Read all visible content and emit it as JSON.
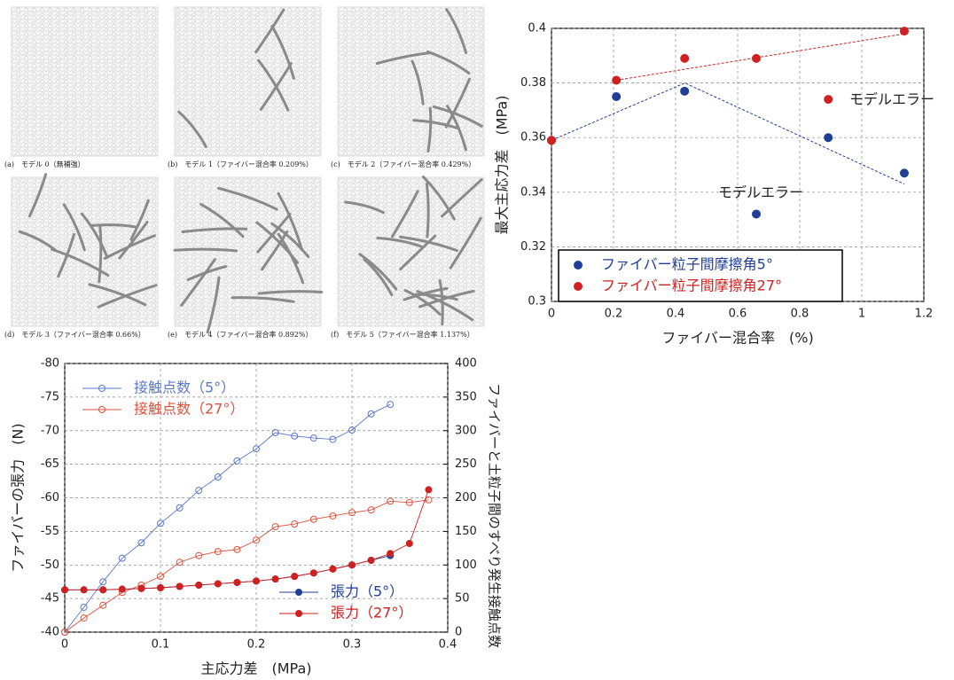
{
  "panels": [
    {
      "caption": "(a)　モデル 0（無補強）"
    },
    {
      "caption": "(b)　モデル 1（ファイバー混合率 0.209%）"
    },
    {
      "caption": "(c)　モデル 2（ファイバー混合率 0.429%）"
    },
    {
      "caption": "(d)　モデル 3（ファイバー混合率 0.66%）"
    },
    {
      "caption": "(e)　モデル 4（ファイバー混合率 0.892%）"
    },
    {
      "caption": "(f)　モデル 5（ファイバー混合率 1.137%）"
    }
  ],
  "chart_data": [
    {
      "type": "scatter",
      "x_label": "ファイバー混合率　(%)",
      "y_label": "最大主応力差　(MPa)",
      "xlim": [
        0,
        1.2
      ],
      "xticks": [
        0,
        0.2,
        0.4,
        0.6,
        0.8,
        1,
        1.2
      ],
      "ylim": [
        0.3,
        0.4
      ],
      "yticks": [
        0.3,
        0.32,
        0.34,
        0.36,
        0.38,
        0.4
      ],
      "grid": true,
      "legend": "lower-left",
      "annotations": [
        "モデルエラー",
        "モデルエラー"
      ],
      "series": [
        {
          "name": "ファイバー粒子間摩擦角5°",
          "color": "#1f3f96",
          "marker": "filled",
          "x": [
            0,
            0.209,
            0.429,
            0.66,
            0.892,
            1.137
          ],
          "values": [
            0.359,
            0.375,
            0.377,
            0.332,
            0.36,
            0.347
          ],
          "trend": {
            "x": [
              0,
              0.43,
              1.137
            ],
            "values": [
              0.359,
              0.38,
              0.343
            ]
          }
        },
        {
          "name": "ファイバー粒子間摩擦角27°",
          "color": "#d02020",
          "marker": "filled",
          "x": [
            0,
            0.209,
            0.429,
            0.66,
            0.892,
            1.137
          ],
          "values": [
            0.359,
            0.381,
            0.389,
            0.389,
            0.374,
            0.399
          ],
          "trend": {
            "x": [
              0.209,
              1.137
            ],
            "values": [
              0.381,
              0.398
            ]
          }
        }
      ]
    },
    {
      "type": "line",
      "x_label": "主応力差　(MPa)",
      "y_label": "ファイバーの張力　(N)",
      "y2_label": "ファイバーと土粒子間のすべり発生接触点数",
      "xlim": [
        0,
        0.4
      ],
      "xticks": [
        0,
        0.1,
        0.2,
        0.3,
        0.4
      ],
      "ylim": [
        -40,
        -80
      ],
      "yticks": [
        -40,
        -45,
        -50,
        -55,
        -60,
        -65,
        -70,
        -75,
        -80
      ],
      "y2lim": [
        0,
        400
      ],
      "y2ticks": [
        0,
        50,
        100,
        150,
        200,
        250,
        300,
        350,
        400
      ],
      "grid": true,
      "series": [
        {
          "name": "接触点数（5°）",
          "color": "#5a78c8",
          "marker": "open",
          "axis": "y2",
          "legend": "upper-left",
          "x": [
            0,
            0.02,
            0.04,
            0.06,
            0.08,
            0.1,
            0.12,
            0.14,
            0.16,
            0.18,
            0.2,
            0.22,
            0.24,
            0.26,
            0.28,
            0.3,
            0.32,
            0.34
          ],
          "values": [
            0,
            37,
            75,
            110,
            133,
            162,
            185,
            211,
            231,
            255,
            273,
            297,
            292,
            289,
            287,
            301,
            325,
            339
          ]
        },
        {
          "name": "接触点数（27°）",
          "color": "#e0503c",
          "marker": "open",
          "axis": "y2",
          "legend": "upper-left",
          "x": [
            0,
            0.02,
            0.04,
            0.06,
            0.08,
            0.1,
            0.12,
            0.14,
            0.16,
            0.18,
            0.2,
            0.22,
            0.24,
            0.26,
            0.28,
            0.3,
            0.32,
            0.34,
            0.36,
            0.38
          ],
          "values": [
            0,
            21,
            40,
            59,
            70,
            83,
            104,
            114,
            120,
            123,
            137,
            157,
            161,
            168,
            173,
            178,
            182,
            195,
            193,
            197
          ]
        },
        {
          "name": "張力（5°）",
          "color": "#1f3f96",
          "marker": "filled",
          "legend": "lower-right",
          "x": [
            0,
            0.02,
            0.04,
            0.06,
            0.08,
            0.1,
            0.12,
            0.14,
            0.16,
            0.18,
            0.2,
            0.22,
            0.24,
            0.26,
            0.28,
            0.3,
            0.32,
            0.34
          ],
          "values": [
            -46.3,
            -46.3,
            -46.3,
            -46.4,
            -46.5,
            -46.6,
            -46.8,
            -47.0,
            -47.2,
            -47.4,
            -47.6,
            -47.9,
            -48.3,
            -48.8,
            -49.4,
            -50.0,
            -50.7,
            -51.4
          ]
        },
        {
          "name": "張力（27°）",
          "color": "#d02020",
          "marker": "filled",
          "legend": "lower-right",
          "x": [
            0,
            0.02,
            0.04,
            0.06,
            0.08,
            0.1,
            0.12,
            0.14,
            0.16,
            0.18,
            0.2,
            0.22,
            0.24,
            0.26,
            0.28,
            0.3,
            0.32,
            0.34,
            0.36,
            0.38
          ],
          "values": [
            -46.3,
            -46.3,
            -46.3,
            -46.4,
            -46.5,
            -46.6,
            -46.8,
            -47.0,
            -47.2,
            -47.4,
            -47.6,
            -47.9,
            -48.3,
            -48.8,
            -49.4,
            -50.0,
            -50.7,
            -51.7,
            -53.2,
            -61.2
          ]
        }
      ]
    }
  ]
}
